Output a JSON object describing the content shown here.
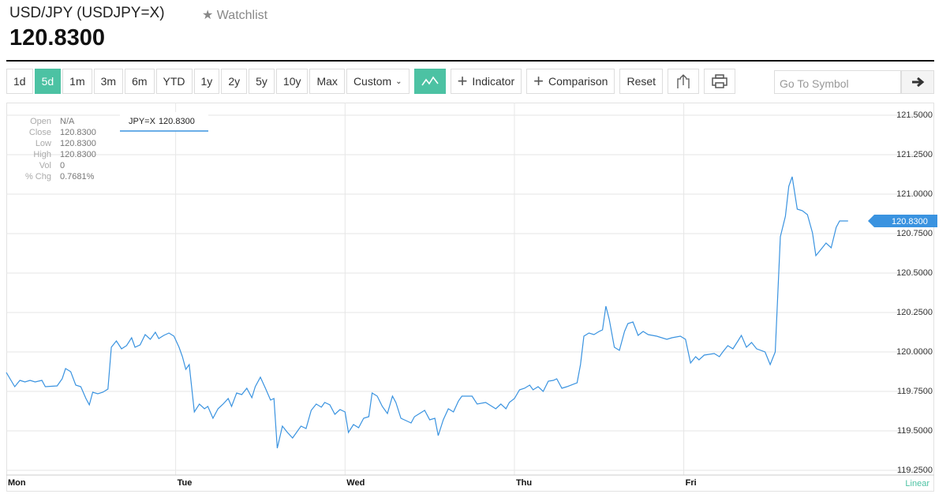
{
  "header": {
    "title": "USD/JPY (USDJPY=X)",
    "watchlist": "Watchlist",
    "price": "120.8300"
  },
  "toolbar": {
    "ranges": [
      "1d",
      "5d",
      "1m",
      "3m",
      "6m",
      "YTD",
      "1y",
      "2y",
      "5y",
      "10y",
      "Max"
    ],
    "custom": "Custom",
    "indicator": "Indicator",
    "comparison": "Comparison",
    "reset": "Reset",
    "search_placeholder": "Go To Symbol"
  },
  "chart_data": {
    "type": "line",
    "x": [
      0.0,
      0.05,
      0.08,
      0.11,
      0.14,
      0.17,
      0.21,
      0.23,
      0.3,
      0.33,
      0.35,
      0.38,
      0.41,
      0.44,
      0.47,
      0.49,
      0.51,
      0.54,
      0.57,
      0.6,
      0.62,
      0.65,
      0.68,
      0.71,
      0.74,
      0.76,
      0.79,
      0.82,
      0.85,
      0.88,
      0.9,
      0.93,
      0.96,
      0.99,
      1.02,
      1.04,
      1.06,
      1.08,
      1.11,
      1.14,
      1.17,
      1.19,
      1.22,
      1.25,
      1.28,
      1.31,
      1.33,
      1.36,
      1.39,
      1.42,
      1.45,
      1.47,
      1.5,
      1.53,
      1.56,
      1.58,
      1.6,
      1.63,
      1.66,
      1.69,
      1.72,
      1.74,
      1.77,
      1.8,
      1.83,
      1.86,
      1.88,
      1.91,
      1.94,
      1.97,
      2.0,
      2.02,
      2.05,
      2.08,
      2.11,
      2.14,
      2.16,
      2.19,
      2.22,
      2.25,
      2.28,
      2.3,
      2.33,
      2.36,
      2.39,
      2.41,
      2.44,
      2.47,
      2.5,
      2.53,
      2.55,
      2.58,
      2.61,
      2.64,
      2.67,
      2.69,
      2.75,
      2.78,
      2.83,
      2.89,
      2.92,
      2.95,
      2.97,
      3.0,
      3.03,
      3.06,
      3.09,
      3.11,
      3.14,
      3.17,
      3.2,
      3.23,
      3.25,
      3.28,
      3.31,
      3.37,
      3.39,
      3.41,
      3.44,
      3.47,
      3.5,
      3.52,
      3.54,
      3.56,
      3.59,
      3.62,
      3.65,
      3.67,
      3.7,
      3.73,
      3.76,
      3.79,
      3.84,
      3.9,
      3.93,
      3.98,
      4.01,
      4.04,
      4.07,
      4.09,
      4.12,
      4.18,
      4.21,
      4.23,
      4.26,
      4.29,
      4.32,
      4.34,
      4.37,
      4.4,
      4.43,
      4.48,
      4.51,
      4.54,
      4.57,
      4.6,
      4.62,
      4.64,
      4.67,
      4.7,
      4.73,
      4.76,
      4.78,
      4.81,
      4.84,
      4.87,
      4.9,
      4.92,
      4.97
    ],
    "series": [
      {
        "name": "JPY=X",
        "color": "#3a93e0",
        "values": [
          119.87,
          119.78,
          119.82,
          119.81,
          119.82,
          119.81,
          119.82,
          119.78,
          119.785,
          119.83,
          119.895,
          119.875,
          119.79,
          119.78,
          119.705,
          119.665,
          119.745,
          119.735,
          119.745,
          119.765,
          120.03,
          120.07,
          120.02,
          120.04,
          120.09,
          120.03,
          120.045,
          120.11,
          120.08,
          120.125,
          120.085,
          120.105,
          120.12,
          120.1,
          120.03,
          119.97,
          119.89,
          119.92,
          119.62,
          119.67,
          119.64,
          119.655,
          119.58,
          119.64,
          119.67,
          119.705,
          119.655,
          119.74,
          119.73,
          119.77,
          119.71,
          119.78,
          119.84,
          119.77,
          119.695,
          119.705,
          119.39,
          119.53,
          119.49,
          119.455,
          119.5,
          119.53,
          119.515,
          119.63,
          119.67,
          119.65,
          119.68,
          119.665,
          119.605,
          119.635,
          119.62,
          119.49,
          119.54,
          119.52,
          119.58,
          119.59,
          119.74,
          119.72,
          119.655,
          119.61,
          119.72,
          119.68,
          119.58,
          119.565,
          119.55,
          119.59,
          119.61,
          119.63,
          119.57,
          119.58,
          119.47,
          119.57,
          119.64,
          119.62,
          119.69,
          119.72,
          119.72,
          119.67,
          119.68,
          119.64,
          119.67,
          119.64,
          119.68,
          119.705,
          119.76,
          119.77,
          119.79,
          119.76,
          119.78,
          119.75,
          119.815,
          119.82,
          119.83,
          119.77,
          119.78,
          119.805,
          119.92,
          120.1,
          120.12,
          120.11,
          120.13,
          120.14,
          120.29,
          120.205,
          120.03,
          120.01,
          120.13,
          120.18,
          120.19,
          120.105,
          120.13,
          120.11,
          120.1,
          120.08,
          120.09,
          120.1,
          120.08,
          119.93,
          119.97,
          119.95,
          119.98,
          119.99,
          119.97,
          120.0,
          120.04,
          120.02,
          120.07,
          120.105,
          120.03,
          120.06,
          120.02,
          120.0,
          119.92,
          120.0,
          120.73,
          120.86,
          121.05,
          121.11,
          120.905,
          120.895,
          120.87,
          120.755,
          120.61,
          120.65,
          120.69,
          120.66,
          120.79,
          120.83,
          120.83
        ]
      }
    ],
    "xlim": [
      0,
      5.46
    ],
    "xticks": [
      {
        "value": 0,
        "label": "Mon"
      },
      {
        "value": 1,
        "label": "Tue"
      },
      {
        "value": 2,
        "label": "Wed"
      },
      {
        "value": 3,
        "label": "Thu"
      },
      {
        "value": 4,
        "label": "Fri"
      }
    ],
    "ylim": [
      119.22,
      121.58
    ],
    "yticks": [
      {
        "value": 119.25,
        "label": "119.2500"
      },
      {
        "value": 119.5,
        "label": "119.5000"
      },
      {
        "value": 119.75,
        "label": "119.7500"
      },
      {
        "value": 120,
        "label": "120.0000"
      },
      {
        "value": 120.25,
        "label": "120.2500"
      },
      {
        "value": 120.5,
        "label": "120.5000"
      },
      {
        "value": 120.75,
        "label": "120.7500"
      },
      {
        "value": 121,
        "label": "121.0000"
      },
      {
        "value": 121.25,
        "label": "121.2500"
      },
      {
        "value": 121.5,
        "label": "121.5000"
      }
    ],
    "grid": true,
    "scale_label": "Linear",
    "last_price_label": "120.8300",
    "ohlc": [
      [
        "Open",
        "N/A"
      ],
      [
        "Close",
        "120.8300"
      ],
      [
        "Low",
        "120.8300"
      ],
      [
        "High",
        "120.8300"
      ],
      [
        "Vol",
        "0"
      ],
      [
        "% Chg",
        "0.7681%"
      ]
    ]
  }
}
